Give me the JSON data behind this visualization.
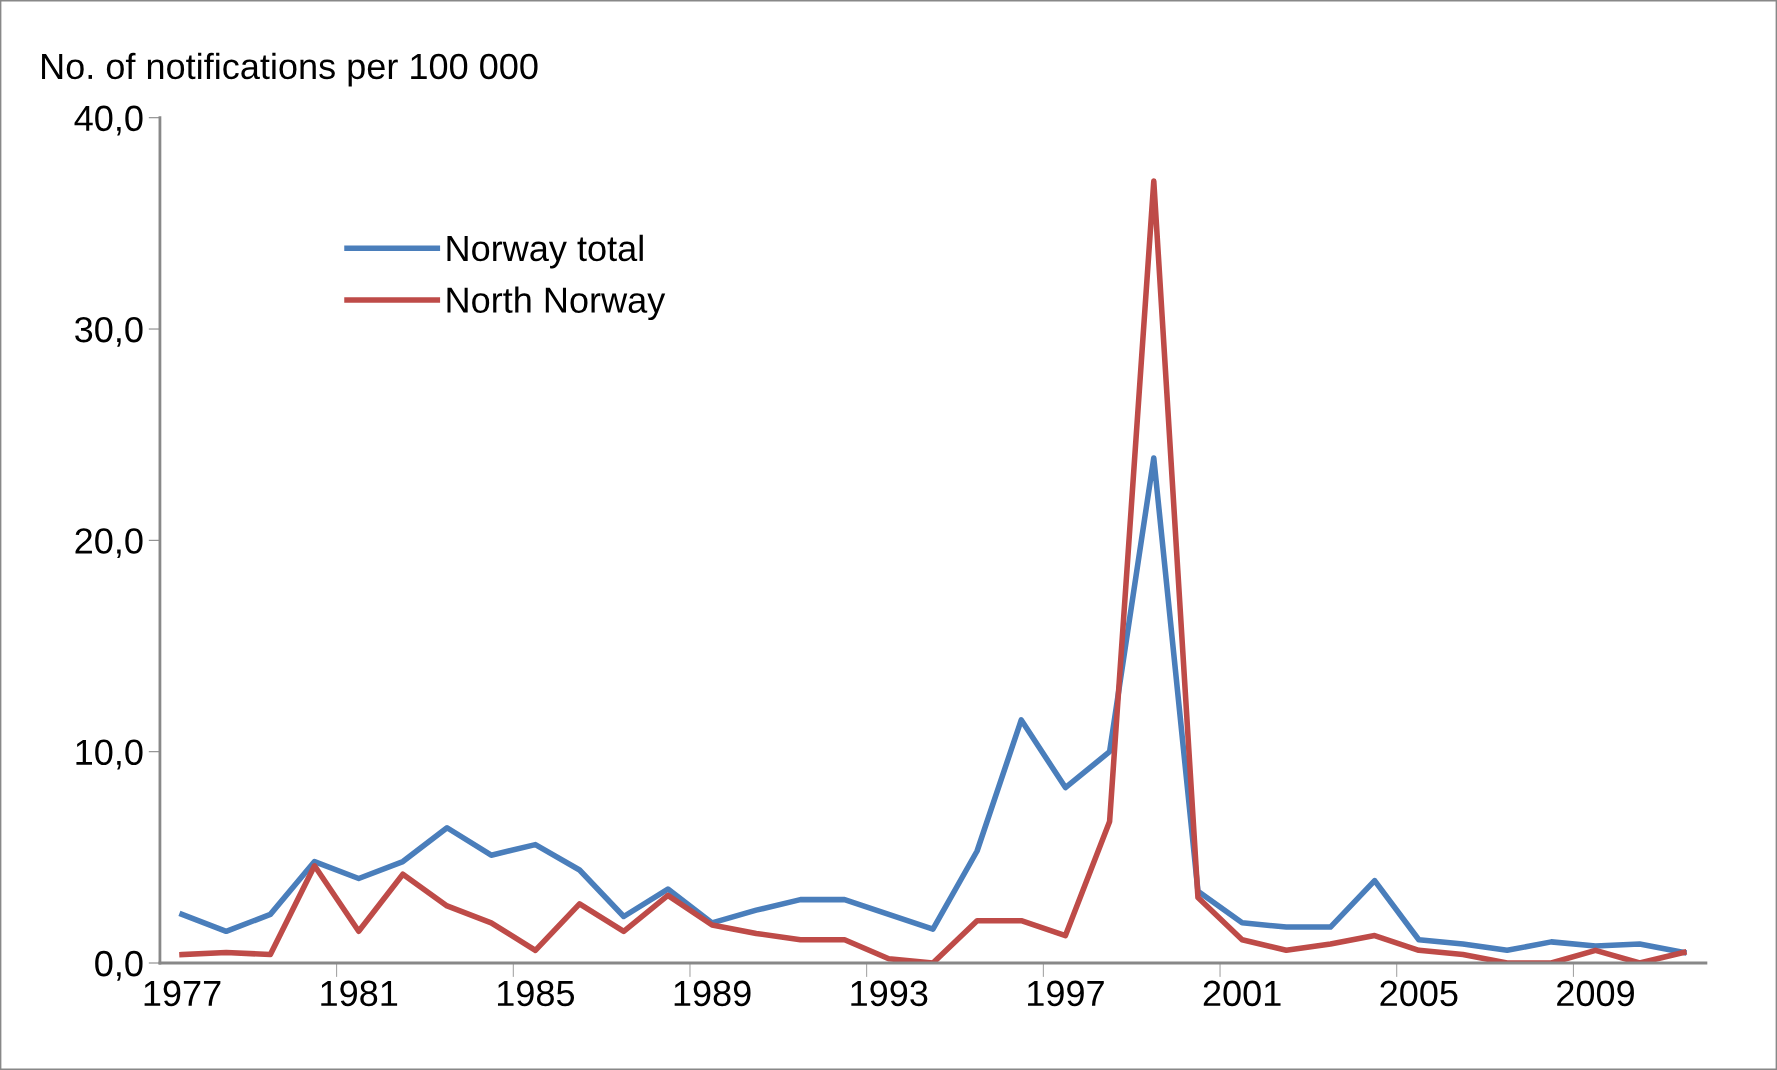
{
  "chart_data": {
    "type": "line",
    "ylabel": "No. of notifications per 100 000",
    "categories": [
      "1977",
      null,
      null,
      null,
      "1981",
      null,
      null,
      null,
      "1985",
      null,
      null,
      null,
      "1989",
      null,
      null,
      null,
      "1993",
      null,
      null,
      null,
      "1997",
      null,
      null,
      null,
      "2001",
      null,
      null,
      null,
      "2005",
      null,
      null,
      null,
      "2009",
      null,
      null
    ],
    "series": [
      {
        "name": "Norway total",
        "color": "#4a7ebb",
        "values": [
          2.3,
          1.5,
          2.3,
          4.8,
          4.0,
          4.8,
          6.4,
          5.1,
          5.6,
          4.4,
          2.2,
          3.5,
          1.9,
          2.5,
          3.0,
          3.0,
          2.3,
          1.6,
          5.3,
          11.5,
          8.3,
          10.0,
          23.9,
          3.4,
          1.9,
          1.7,
          1.7,
          3.9,
          1.1,
          0.9,
          0.6,
          1.0,
          0.8,
          0.9,
          0.5
        ]
      },
      {
        "name": "North Norway",
        "color": "#be4b48",
        "values": [
          0.4,
          0.5,
          0.4,
          4.6,
          1.5,
          4.2,
          2.7,
          1.9,
          0.6,
          2.8,
          1.5,
          3.2,
          1.8,
          1.4,
          1.1,
          1.1,
          0.2,
          0.0,
          2.0,
          2.0,
          1.3,
          6.7,
          37.0,
          3.1,
          1.1,
          0.6,
          0.9,
          1.3,
          0.6,
          0.4,
          0.0,
          0.0,
          0.6,
          0.0,
          0.5
        ]
      }
    ],
    "ylim": [
      0,
      40
    ],
    "yticks": [
      {
        "value": 0,
        "label": "0,0"
      },
      {
        "value": 10,
        "label": "10,0"
      },
      {
        "value": 20,
        "label": "20,0"
      },
      {
        "value": 30,
        "label": "30,0"
      },
      {
        "value": 40,
        "label": "40,0"
      }
    ],
    "legend": "top left",
    "grid": false,
    "marker": "none",
    "line_style": "solid"
  }
}
